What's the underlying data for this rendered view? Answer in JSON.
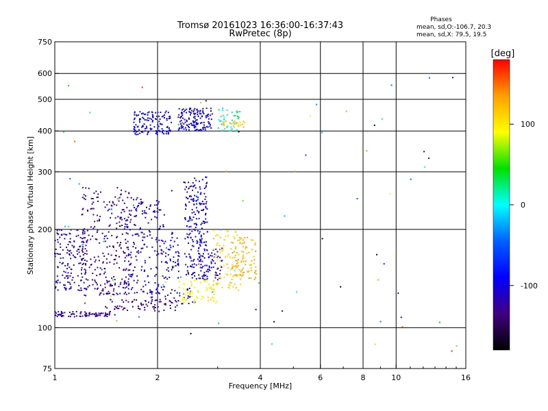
{
  "chart_data": {
    "type": "scatter",
    "title": "Tromsø 20161023 16:36:00-16:37:43",
    "subtitle": "RwPretec (8p)",
    "xlabel": "Frequency [MHz]",
    "ylabel": "Stationary phase Virtual Height [km]",
    "x_scale": "log",
    "y_scale": "log",
    "xlim": [
      1,
      16
    ],
    "ylim": [
      75,
      750
    ],
    "x_ticks": [
      1,
      2,
      4,
      6,
      8,
      10,
      16
    ],
    "y_ticks": [
      75,
      100,
      200,
      300,
      400,
      500,
      600,
      750
    ],
    "x_gridlines": [
      2,
      4,
      6,
      8,
      10
    ],
    "y_gridlines": [
      100,
      200,
      300,
      400,
      500,
      600
    ],
    "grid": true,
    "legend": {
      "title": "Phases",
      "lines": [
        "mean, sd,O:-106.7, 20.3",
        "mean, sd,X:  79.5, 19.5"
      ]
    },
    "colorbar": {
      "label": "[deg]",
      "range": [
        -180,
        180
      ],
      "ticks": [
        100,
        0,
        -100
      ],
      "colors": [
        "#ff0000",
        "#ffa000",
        "#ffff00",
        "#00e000",
        "#00ffff",
        "#0060ff",
        "#0000ff",
        "#400080",
        "#000000"
      ]
    },
    "point_clusters": [
      {
        "x": [
          1.0,
          1.45
        ],
        "y": [
          108,
          112
        ],
        "n": 80,
        "phase": [
          -130,
          -115
        ]
      },
      {
        "x": [
          1.4,
          2.3
        ],
        "y": [
          112,
          122
        ],
        "n": 70,
        "phase": [
          -140,
          -125
        ]
      },
      {
        "x": [
          1.9,
          2.6
        ],
        "y": [
          118,
          132
        ],
        "n": 40,
        "phase": [
          -120,
          -100
        ]
      },
      {
        "x": [
          1.0,
          1.25
        ],
        "y": [
          130,
          200
        ],
        "n": 160,
        "phase": [
          -125,
          -105
        ]
      },
      {
        "x": [
          1.2,
          1.65
        ],
        "y": [
          125,
          270
        ],
        "n": 260,
        "phase": [
          -140,
          -115
        ]
      },
      {
        "x": [
          1.6,
          2.1
        ],
        "y": [
          125,
          250
        ],
        "n": 200,
        "phase": [
          -125,
          -100
        ]
      },
      {
        "x": [
          2.1,
          2.35
        ],
        "y": [
          140,
          200
        ],
        "n": 50,
        "phase": [
          -110,
          -90
        ]
      },
      {
        "x": [
          2.4,
          2.8
        ],
        "y": [
          140,
          290
        ],
        "n": 220,
        "phase": [
          -115,
          -90
        ]
      },
      {
        "x": [
          2.7,
          3.1
        ],
        "y": [
          140,
          175
        ],
        "n": 60,
        "phase": [
          -110,
          -95
        ]
      },
      {
        "x": [
          2.3,
          3.0
        ],
        "y": [
          118,
          140
        ],
        "n": 70,
        "phase": [
          85,
          110
        ]
      },
      {
        "x": [
          2.9,
          3.5
        ],
        "y": [
          130,
          200
        ],
        "n": 80,
        "phase": [
          100,
          125
        ]
      },
      {
        "x": [
          3.3,
          3.9
        ],
        "y": [
          140,
          190
        ],
        "n": 90,
        "phase": [
          115,
          140
        ]
      },
      {
        "x": [
          1.7,
          2.2
        ],
        "y": [
          390,
          460
        ],
        "n": 130,
        "phase": [
          -110,
          -85
        ]
      },
      {
        "x": [
          2.3,
          2.9
        ],
        "y": [
          400,
          470
        ],
        "n": 140,
        "phase": [
          -110,
          -85
        ]
      },
      {
        "x": [
          3.0,
          3.5
        ],
        "y": [
          400,
          470
        ],
        "n": 40,
        "phase": [
          -20,
          40
        ]
      },
      {
        "x": [
          3.1,
          3.6
        ],
        "y": [
          410,
          430
        ],
        "n": 25,
        "phase": [
          110,
          130
        ]
      },
      {
        "x": [
          1.0,
          16.0
        ],
        "y": [
          80,
          600
        ],
        "n": 90,
        "phase": [
          -180,
          180
        ]
      }
    ]
  }
}
